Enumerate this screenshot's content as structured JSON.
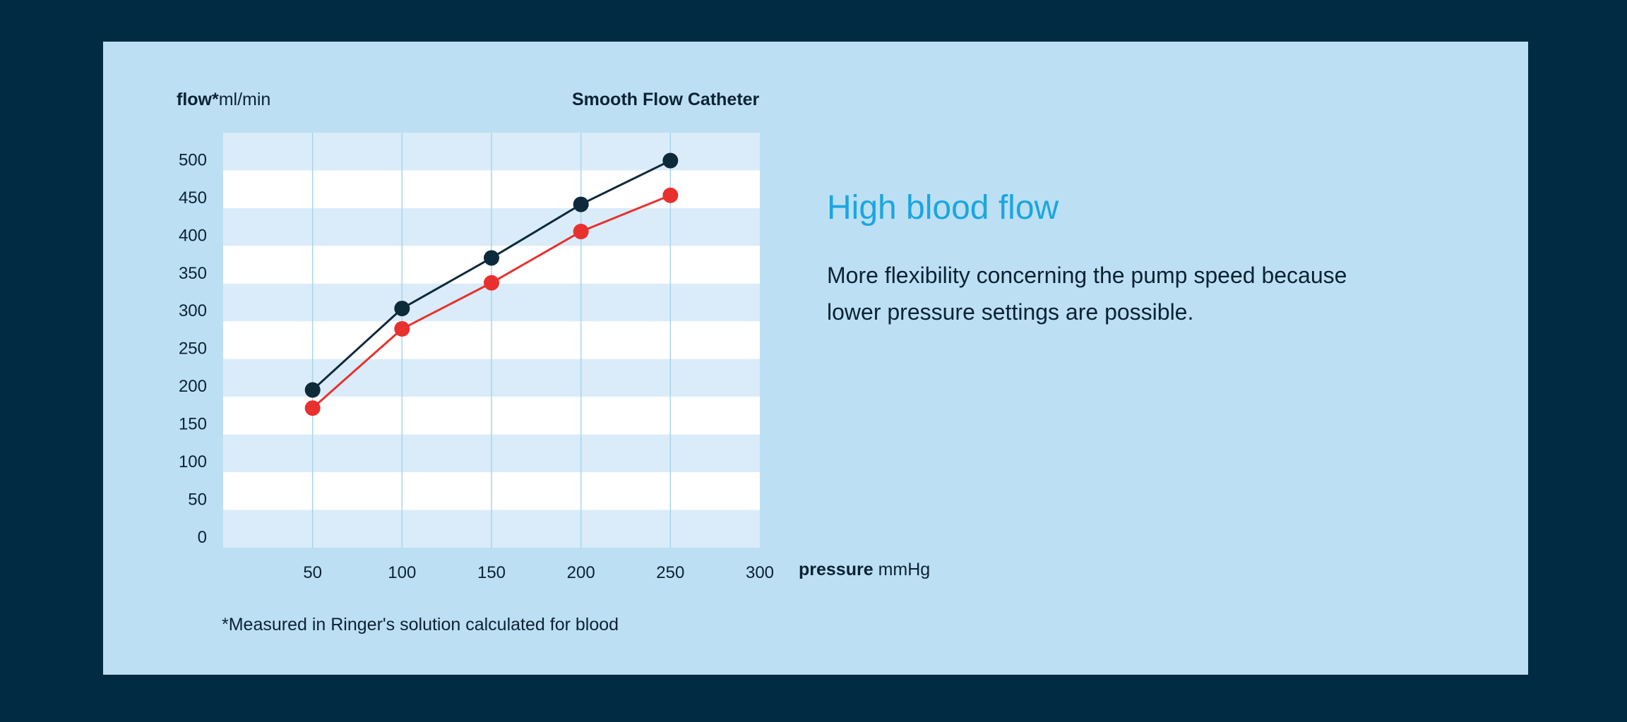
{
  "chart_data": {
    "type": "line",
    "title": "Smooth Flow Catheter",
    "ylabel_bold": "flow*",
    "ylabel_unit": "ml/min",
    "xlabel_bold": "pressure",
    "xlabel_unit": "mmHg",
    "x": [
      50,
      100,
      150,
      200,
      250
    ],
    "xticks": [
      50,
      100,
      150,
      200,
      250,
      300
    ],
    "yticks": [
      0,
      50,
      100,
      150,
      200,
      250,
      300,
      350,
      400,
      450,
      500
    ],
    "xlim": [
      0,
      300
    ],
    "ylim": [
      -15,
      535
    ],
    "series": [
      {
        "values": [
          194,
          302,
          369,
          440,
          498
        ],
        "color": "#0d2a3a"
      },
      {
        "values": [
          170,
          275,
          336,
          404,
          452
        ],
        "color": "#e8312f"
      }
    ],
    "footnote": "*Measured in Ringer's solution calculated for blood"
  },
  "side": {
    "headline": "High blood flow",
    "description": "More flexibility concerning the pump speed because lower pressure settings are possible."
  },
  "colors": {
    "background": "#002b42",
    "panel": "#bcdff3",
    "band_dark": "#daecf9",
    "band_light": "#ffffff",
    "accent": "#1aa6e0"
  }
}
